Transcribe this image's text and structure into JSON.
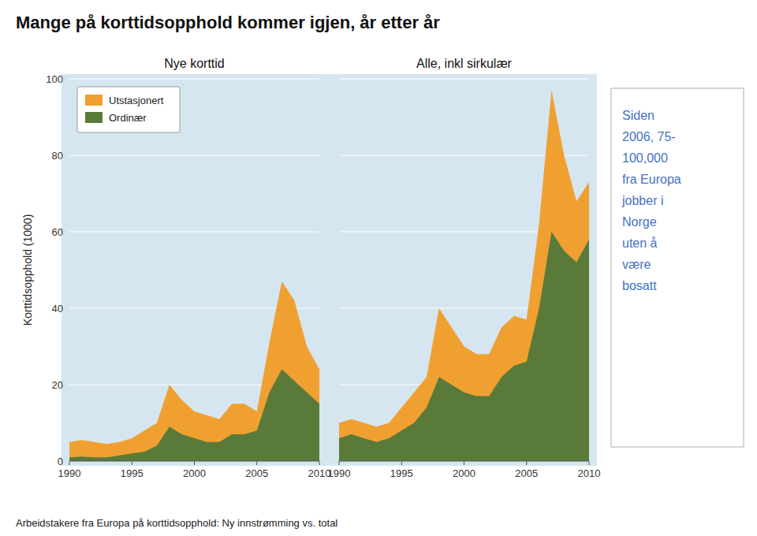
{
  "title": "Mange på korttidsopphold kommer igjen, år etter år",
  "subtitle": "Arbeidstakere fra Europa på korttidsopphold: Ny innstrømming vs. total",
  "annotations": [
    "Siden\n2006, 75-\n100,000\nfra Europa\njobber i\nNorge\nuten å\nvære\nbosatt"
  ],
  "chart_data": [
    {
      "type": "area",
      "title": "Nye korttid",
      "ylabel": "Korttidsopphold (1000)",
      "x": [
        1990,
        1991,
        1992,
        1993,
        1994,
        1995,
        1996,
        1997,
        1998,
        1999,
        2000,
        2001,
        2002,
        2003,
        2004,
        2005,
        2006,
        2007,
        2008,
        2009,
        2010
      ],
      "series": [
        {
          "name": "Utstasjonert",
          "color": "#F0A030",
          "values": [
            5,
            5.5,
            5,
            4.5,
            5,
            6,
            8,
            10,
            20,
            16,
            13,
            12,
            11,
            15,
            15,
            13,
            31,
            47,
            42,
            30,
            24
          ]
        },
        {
          "name": "Ordinær",
          "color": "#5a7a3a",
          "values": [
            1,
            1.2,
            1,
            1,
            1.5,
            2,
            2.5,
            4,
            9,
            7,
            6,
            5,
            5,
            7,
            7,
            8,
            18,
            24,
            21,
            18,
            15
          ]
        }
      ],
      "xlim": [
        1990,
        2010
      ],
      "xticks": [
        1990,
        1995,
        2000,
        2005,
        2010
      ],
      "ylim": [
        0,
        100
      ],
      "yticks": [
        0,
        20,
        40,
        60,
        80,
        100
      ],
      "grid": true,
      "legend": "upper left"
    },
    {
      "type": "area",
      "title": "Alle, inkl sirkulær",
      "x": [
        1990,
        1991,
        1992,
        1993,
        1994,
        1995,
        1996,
        1997,
        1998,
        1999,
        2000,
        2001,
        2002,
        2003,
        2004,
        2005,
        2006,
        2007,
        2008,
        2009,
        2010
      ],
      "series": [
        {
          "name": "Utstasjonert",
          "color": "#F0A030",
          "values": [
            10,
            11,
            10,
            9,
            10,
            14,
            18,
            22,
            40,
            35,
            30,
            28,
            28,
            35,
            38,
            37,
            62,
            97,
            80,
            68,
            73
          ]
        },
        {
          "name": "Ordinær",
          "color": "#5a7a3a",
          "values": [
            6,
            7,
            6,
            5,
            6,
            8,
            10,
            14,
            22,
            20,
            18,
            17,
            17,
            22,
            25,
            26,
            40,
            60,
            55,
            52,
            58
          ]
        }
      ],
      "xlim": [
        1990,
        2010
      ],
      "xticks": [
        1990,
        1995,
        2000,
        2005,
        2010
      ],
      "ylim": [
        0,
        100
      ],
      "yticks": [
        0,
        20,
        40,
        60,
        80,
        100
      ],
      "grid": true,
      "tick_labels": "x"
    }
  ]
}
